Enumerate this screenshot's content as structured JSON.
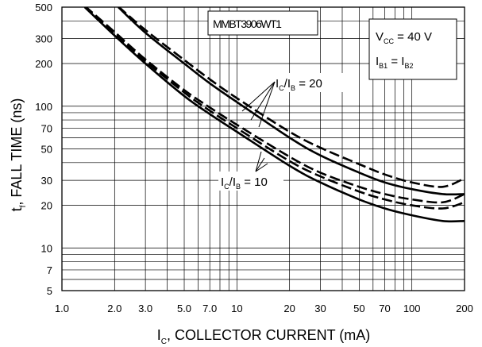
{
  "chart_data": {
    "type": "line",
    "title": "MMBT3906WT1",
    "xlabel": {
      "main": "I",
      "sub": "C",
      "rest": ", COLLECTOR CURRENT (mA)"
    },
    "ylabel": {
      "main": "t",
      "sub": "f",
      "rest": ", FALL TIME (ns)"
    },
    "x_scale": "log",
    "y_scale": "log",
    "xlim": [
      1,
      200
    ],
    "ylim": [
      5,
      500
    ],
    "grid": true,
    "x_ticks": [
      {
        "v": 1,
        "label": "1.0"
      },
      {
        "v": 2,
        "label": "2.0"
      },
      {
        "v": 3,
        "label": "3.0"
      },
      {
        "v": 5,
        "label": "5.0"
      },
      {
        "v": 7,
        "label": "7.0"
      },
      {
        "v": 10,
        "label": "10"
      },
      {
        "v": 20,
        "label": "20"
      },
      {
        "v": 30,
        "label": "30"
      },
      {
        "v": 50,
        "label": "50"
      },
      {
        "v": 70,
        "label": "70"
      },
      {
        "v": 100,
        "label": "100"
      },
      {
        "v": 200,
        "label": "200"
      }
    ],
    "y_ticks": [
      {
        "v": 5,
        "label": "5"
      },
      {
        "v": 7,
        "label": "7"
      },
      {
        "v": 10,
        "label": "10"
      },
      {
        "v": 20,
        "label": "20"
      },
      {
        "v": 30,
        "label": "30"
      },
      {
        "v": 50,
        "label": "50"
      },
      {
        "v": 70,
        "label": "70"
      },
      {
        "v": 100,
        "label": "100"
      },
      {
        "v": 200,
        "label": "200"
      },
      {
        "v": 300,
        "label": "300"
      },
      {
        "v": 500,
        "label": "500"
      }
    ],
    "series": [
      {
        "style": "solid",
        "group": "IC/IB = 20",
        "color": "#000000",
        "x": [
          2.1,
          3,
          5,
          7,
          10,
          20,
          30,
          50,
          70,
          100,
          150,
          200
        ],
        "y": [
          500,
          330,
          200,
          145,
          107,
          60,
          45,
          34,
          29,
          26,
          24,
          24
        ]
      },
      {
        "style": "dashed",
        "group": "IC/IB = 20",
        "color": "#000000",
        "x": [
          2.1,
          3,
          5,
          7,
          10,
          20,
          30,
          50,
          70,
          100,
          150,
          200
        ],
        "y": [
          505,
          345,
          212,
          155,
          114,
          66,
          51,
          39,
          33,
          29,
          27,
          31
        ]
      },
      {
        "style": "solid",
        "group": "IC/IB = 10",
        "color": "#000000",
        "x": [
          1.35,
          2,
          3,
          5,
          7,
          10,
          20,
          30,
          50,
          70,
          100,
          150,
          200
        ],
        "y": [
          500,
          315,
          200,
          118,
          88,
          66,
          38,
          29,
          22,
          19,
          17,
          15.5,
          15.5
        ]
      },
      {
        "style": "dashed",
        "group": "IC/IB = 10",
        "color": "#000000",
        "x": [
          1.35,
          2,
          3,
          5,
          7,
          10,
          20,
          30,
          50,
          70,
          100,
          150,
          200
        ],
        "y": [
          505,
          325,
          208,
          125,
          93,
          70,
          41,
          32,
          25,
          22,
          20,
          19,
          21
        ]
      },
      {
        "style": "dashed",
        "group": "IC/IB = 10",
        "color": "#000000",
        "x": [
          1.35,
          2,
          3,
          5,
          7,
          10,
          20,
          30,
          50,
          70,
          100,
          150,
          200
        ],
        "y": [
          510,
          334,
          214,
          130,
          98,
          74,
          44,
          34,
          27,
          24,
          22,
          21,
          24
        ]
      }
    ],
    "annotations": {
      "cond1": {
        "main": "V",
        "sub": "CC",
        "rest": " = 40 V"
      },
      "cond2": {
        "a_main": "I",
        "a_sub": "B1",
        "mid": " = ",
        "b_main": "I",
        "b_sub": "B2"
      },
      "group20": {
        "a_main": "I",
        "a_sub": "C",
        "slash": "/",
        "b_main": "I",
        "b_sub": "B",
        "rest": " = 20"
      },
      "group10": {
        "a_main": "I",
        "a_sub": "C",
        "slash": "/",
        "b_main": "I",
        "b_sub": "B",
        "rest": " = 10"
      }
    }
  }
}
